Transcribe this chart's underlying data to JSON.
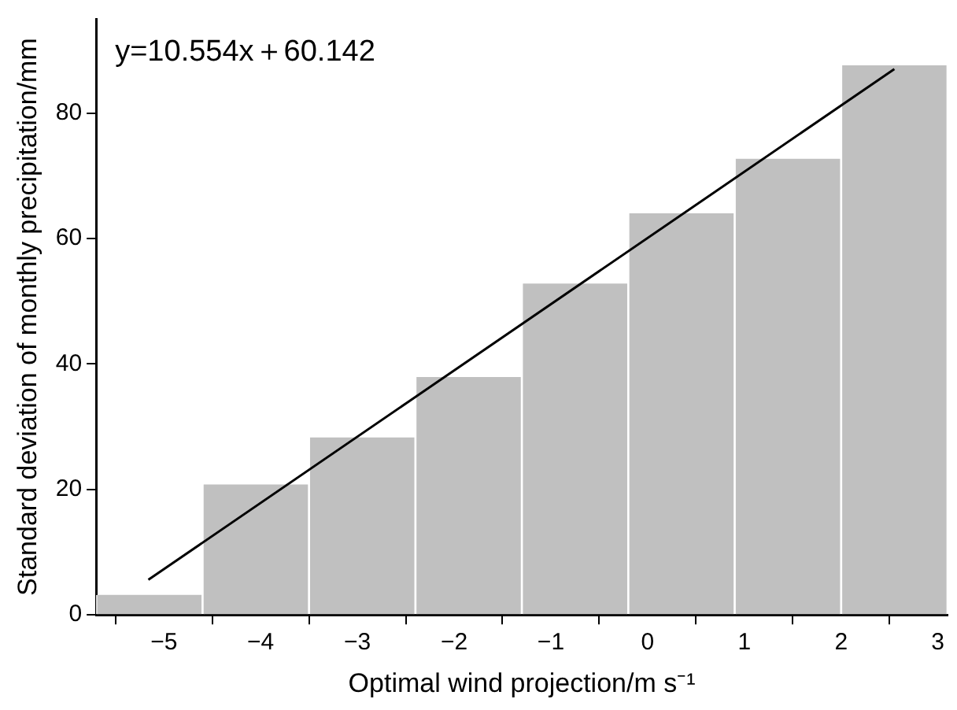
{
  "chart_data": {
    "type": "histogram",
    "xlabel": "Optimal wind projection/m s⁻¹",
    "ylabel": "Standard deviation of monthly precipitation/mm",
    "bins": [
      -5.7,
      -4.6,
      -3.5,
      -2.4,
      -1.3,
      -0.2,
      0.9,
      2.0,
      3.1
    ],
    "values": [
      3.2,
      20.8,
      28.3,
      37.9,
      52.8,
      64.0,
      72.7,
      87.6
    ],
    "color": "#c0c0c0",
    "series": [
      {
        "type": "line",
        "color": "#000000",
        "x": [
          -5.16,
          2.55
        ],
        "values": [
          5.6,
          87.0
        ]
      }
    ],
    "annotations": [
      "y=10.554x＋60.142"
    ],
    "xlim": [
      -5.7,
      3.1
    ],
    "xticks": [
      -5,
      -4,
      -3,
      -2,
      -1,
      0,
      1,
      2,
      3
    ],
    "ylim": [
      0,
      95
    ],
    "yticks": [
      0,
      20,
      40,
      60,
      80
    ],
    "grid": false,
    "legend": false,
    "marker": "none",
    "line_style": "solid"
  }
}
